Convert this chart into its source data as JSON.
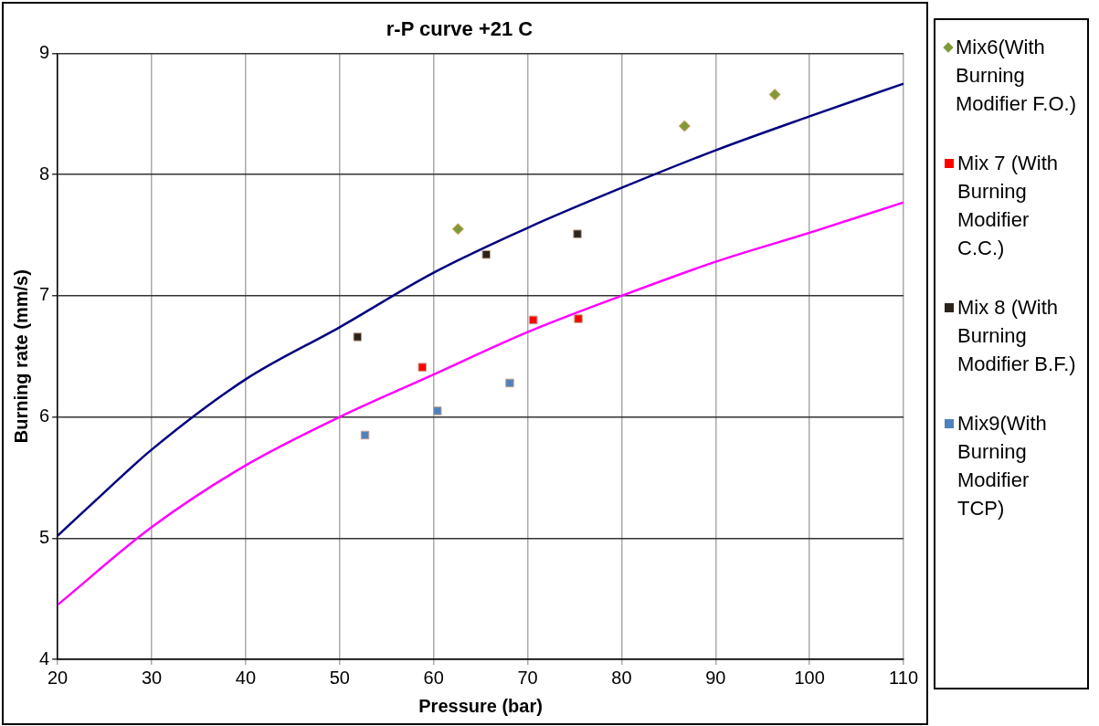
{
  "chart_data": {
    "type": "scatter",
    "title": "r-P curve +21 C",
    "xlabel": "Pressure (bar)",
    "ylabel": "Burning rate (mm/s)",
    "xlim": [
      20,
      110
    ],
    "xticks": [
      20,
      30,
      40,
      50,
      60,
      70,
      80,
      90,
      100,
      110
    ],
    "ylim": [
      4,
      9
    ],
    "yticks": [
      4,
      5,
      6,
      7,
      8,
      9
    ],
    "grid": true,
    "legend": "right",
    "series": [
      {
        "name": "Mix6(With Burning Modifier F.O.)",
        "color": "#7f9a3a",
        "marker": "diamond",
        "x": [
          62.6,
          86.7,
          96.3
        ],
        "values": [
          7.55,
          8.4,
          8.66
        ]
      },
      {
        "name": "Mix 7 (With Burning Modifier C.C.)",
        "color": "#ff0000",
        "marker": "square",
        "x": [
          58.8,
          70.6,
          75.4
        ],
        "values": [
          6.41,
          6.8,
          6.81
        ]
      },
      {
        "name": "Mix 8 (With Burning Modifier B.F.)",
        "color": "#2a241c",
        "marker": "square",
        "x": [
          51.9,
          65.6,
          75.3
        ],
        "values": [
          6.66,
          7.34,
          7.51
        ]
      },
      {
        "name": "Mix9(With Burning Modifier TCP)",
        "color": "#4f81bd",
        "marker": "square",
        "x": [
          52.7,
          60.4,
          68.1
        ],
        "values": [
          5.85,
          6.05,
          6.28
        ]
      },
      {
        "type": "line",
        "color": "#000080",
        "marker": "none",
        "x": [
          20,
          25,
          30,
          40,
          50,
          60,
          70,
          80,
          90,
          100,
          110
        ],
        "values": [
          5.02,
          5.38,
          5.73,
          6.31,
          6.74,
          7.19,
          7.56,
          7.89,
          8.2,
          8.48,
          8.75
        ]
      },
      {
        "type": "line",
        "color": "#ff00ff",
        "marker": "none",
        "x": [
          20,
          30,
          40,
          50,
          60,
          70,
          80,
          90,
          100,
          110
        ],
        "values": [
          4.45,
          5.09,
          5.6,
          6.0,
          6.35,
          6.7,
          7.0,
          7.28,
          7.52,
          7.77
        ]
      }
    ]
  }
}
